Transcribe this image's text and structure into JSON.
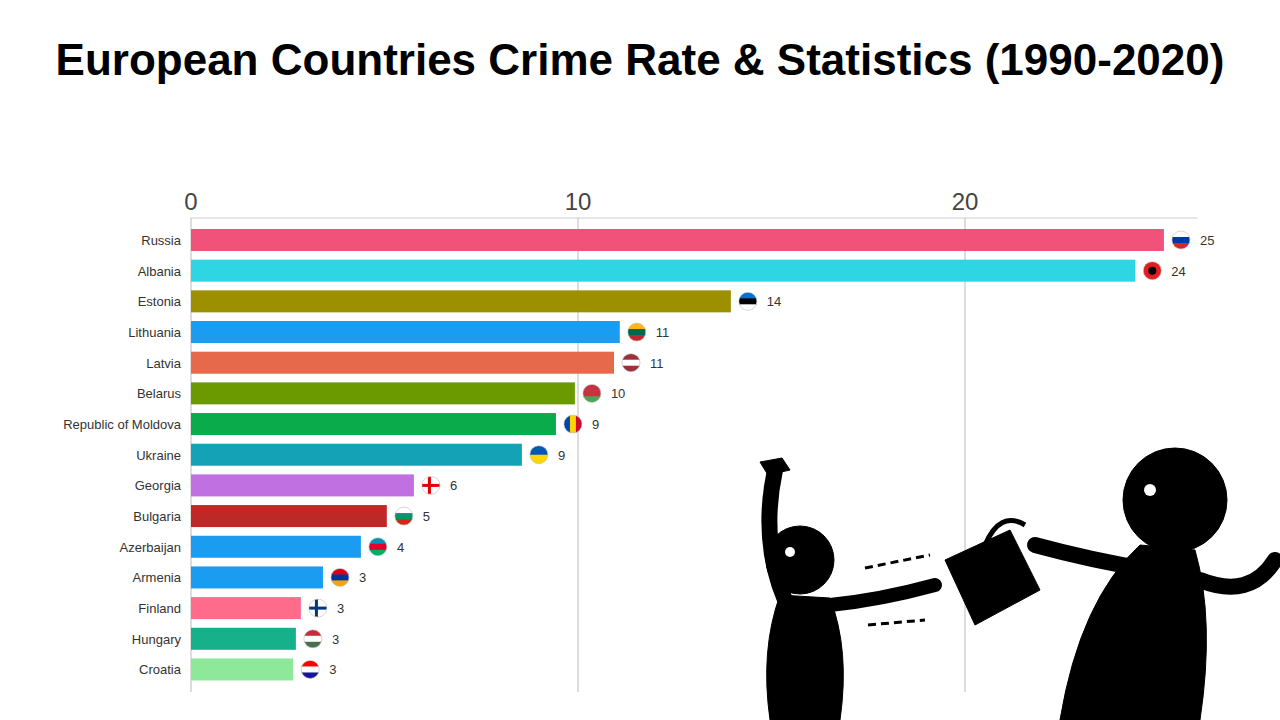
{
  "chart_data": {
    "type": "bar",
    "title": "European Countries Crime Rate & Statistics (1990-2020)",
    "orientation": "horizontal",
    "categories": [
      "Russia",
      "Albania",
      "Estonia",
      "Lithuania",
      "Latvia",
      "Belarus",
      "Republic of Moldova",
      "Ukraine",
      "Georgia",
      "Bulgaria",
      "Azerbaijan",
      "Armenia",
      "Finland",
      "Hungary",
      "Croatia"
    ],
    "values": [
      25.14,
      24.4,
      13.95,
      11.08,
      10.93,
      9.92,
      9.43,
      8.55,
      5.76,
      5.06,
      4.39,
      3.41,
      2.84,
      2.71,
      2.64
    ],
    "value_labels": [
      "25",
      "24",
      "14",
      "11",
      "11",
      "10",
      "9",
      "9",
      "6",
      "5",
      "4",
      "3",
      "3",
      "3",
      "3"
    ],
    "colors": [
      "#f0527a",
      "#2ed6e3",
      "#9c8f00",
      "#1a9cf0",
      "#e5694a",
      "#6a9a00",
      "#0aab4a",
      "#14a3b6",
      "#c070e0",
      "#c02828",
      "#1a9cf0",
      "#1a9cf0",
      "#ff6b8a",
      "#16b08a",
      "#8de89a"
    ],
    "xlim": [
      0,
      26
    ],
    "xticks": [
      0,
      10,
      20
    ],
    "grid": true,
    "data_labels": true
  }
}
